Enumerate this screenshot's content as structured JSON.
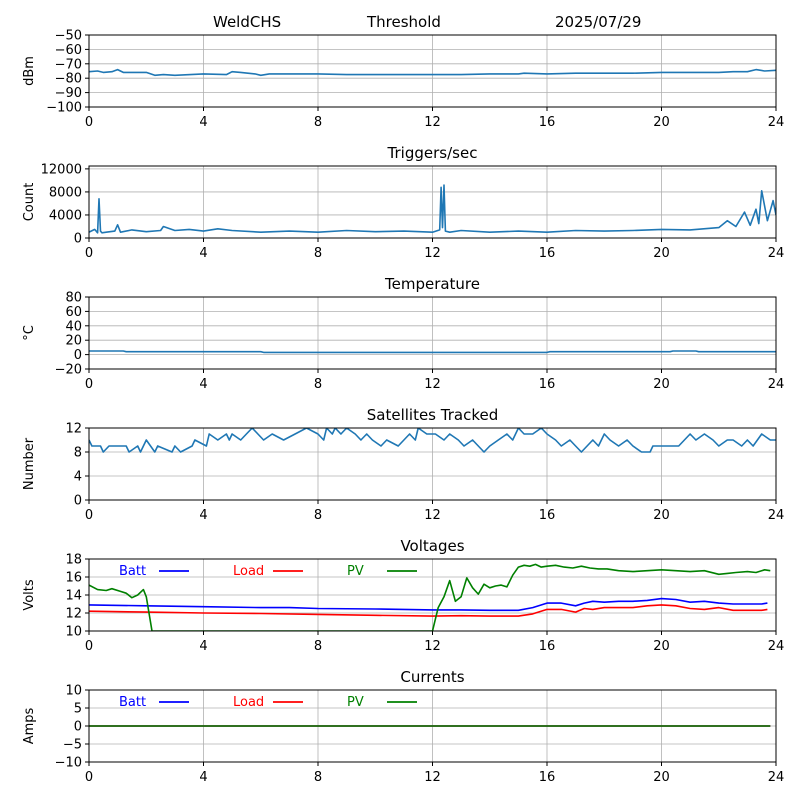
{
  "header": {
    "station": "WeldCHS",
    "mode": "Threshold",
    "date": "2025/07/29"
  },
  "chart_data": [
    {
      "id": "signal",
      "type": "line",
      "title": "",
      "xlabel": "",
      "ylabel": "dBm",
      "xlim": [
        0,
        24
      ],
      "ylim": [
        -100,
        -50
      ],
      "xticks": [
        0,
        4,
        8,
        12,
        16,
        20,
        24
      ],
      "yticks": [
        -100,
        -90,
        -80,
        -70,
        -60,
        -50
      ],
      "grid": true,
      "series": [
        {
          "color": "#1f77b4",
          "x": [
            0,
            0.3,
            0.5,
            0.8,
            1.0,
            1.2,
            2.0,
            2.3,
            2.6,
            3.0,
            4.0,
            4.8,
            5.0,
            5.3,
            5.8,
            6.0,
            6.3,
            7.0,
            8.0,
            9.0,
            10.0,
            11.0,
            12.0,
            13.0,
            14.0,
            15.0,
            15.2,
            16.0,
            17.0,
            18.0,
            19.0,
            20.0,
            21.0,
            22.0,
            22.5,
            23.0,
            23.3,
            23.6,
            24.0
          ],
          "y": [
            -75.5,
            -75,
            -76,
            -75.5,
            -74,
            -76,
            -76,
            -78,
            -77.5,
            -78,
            -77,
            -77.5,
            -75.5,
            -76,
            -77,
            -78,
            -77,
            -77,
            -77,
            -77.5,
            -77.5,
            -77.5,
            -77.5,
            -77.5,
            -77,
            -77,
            -76.5,
            -77,
            -76.5,
            -76.5,
            -76.5,
            -76,
            -76,
            -76,
            -75.5,
            -75.5,
            -74,
            -75,
            -74.5
          ]
        }
      ]
    },
    {
      "id": "triggers",
      "type": "line",
      "title": "Triggers/sec",
      "xlabel": "",
      "ylabel": "Count",
      "xlim": [
        0,
        24
      ],
      "ylim": [
        0,
        12500
      ],
      "xticks": [
        0,
        4,
        8,
        12,
        16,
        20,
        24
      ],
      "yticks": [
        0,
        4000,
        8000,
        12000
      ],
      "grid": true,
      "series": [
        {
          "color": "#1f77b4",
          "x": [
            0,
            0.2,
            0.3,
            0.35,
            0.4,
            0.45,
            0.6,
            0.9,
            1.0,
            1.1,
            1.5,
            2.0,
            2.5,
            2.6,
            3.0,
            3.5,
            4.0,
            4.5,
            5.0,
            6.0,
            7.0,
            8.0,
            9.0,
            10.0,
            11.0,
            12.0,
            12.25,
            12.3,
            12.35,
            12.4,
            12.45,
            12.6,
            13.0,
            14.0,
            15.0,
            16.0,
            17.0,
            18.0,
            19.0,
            20.0,
            21.0,
            22.0,
            22.3,
            22.6,
            22.9,
            23.1,
            23.3,
            23.4,
            23.5,
            23.7,
            23.9,
            24.0
          ],
          "y": [
            1000,
            1500,
            900,
            6800,
            1200,
            900,
            1000,
            1200,
            2300,
            1000,
            1400,
            1100,
            1300,
            2000,
            1300,
            1500,
            1200,
            1600,
            1300,
            1000,
            1200,
            1000,
            1300,
            1100,
            1200,
            1000,
            1400,
            8800,
            1800,
            9200,
            1200,
            1000,
            1300,
            1000,
            1200,
            1000,
            1300,
            1200,
            1300,
            1500,
            1400,
            1800,
            3000,
            2000,
            4500,
            2200,
            5000,
            2500,
            8200,
            3000,
            6500,
            4000
          ]
        }
      ]
    },
    {
      "id": "temperature",
      "type": "line",
      "title": "Temperature",
      "xlabel": "",
      "ylabel": "°C",
      "xlim": [
        0,
        24
      ],
      "ylim": [
        -20,
        80
      ],
      "xticks": [
        0,
        4,
        8,
        12,
        16,
        20,
        24
      ],
      "yticks": [
        -20,
        0,
        20,
        40,
        60,
        80
      ],
      "grid": true,
      "series": [
        {
          "color": "#1f77b4",
          "x": [
            0,
            1.2,
            1.3,
            6.0,
            6.1,
            16.0,
            16.1,
            20.3,
            20.4,
            21.2,
            21.3,
            24.0
          ],
          "y": [
            5,
            5,
            4,
            4,
            3,
            3,
            4,
            4,
            5,
            5,
            4,
            4
          ]
        }
      ]
    },
    {
      "id": "satellites",
      "type": "line",
      "title": "Satellites Tracked",
      "xlabel": "",
      "ylabel": "Number",
      "xlim": [
        0,
        24
      ],
      "ylim": [
        0,
        12
      ],
      "xticks": [
        0,
        4,
        8,
        12,
        16,
        20,
        24
      ],
      "yticks": [
        0,
        4,
        8,
        12
      ],
      "grid": true,
      "series": [
        {
          "color": "#1f77b4",
          "x": [
            0,
            0.1,
            0.4,
            0.5,
            0.7,
            1.3,
            1.4,
            1.7,
            1.8,
            2.0,
            2.3,
            2.4,
            2.9,
            3.0,
            3.2,
            3.6,
            3.7,
            4.1,
            4.2,
            4.5,
            4.8,
            4.9,
            5.0,
            5.3,
            5.5,
            5.7,
            5.9,
            6.1,
            6.4,
            6.8,
            7.2,
            7.6,
            8.0,
            8.2,
            8.3,
            8.5,
            8.6,
            8.8,
            9.0,
            9.3,
            9.5,
            9.7,
            9.9,
            10.2,
            10.4,
            10.8,
            11.0,
            11.2,
            11.4,
            11.5,
            11.8,
            12.1,
            12.4,
            12.6,
            12.9,
            13.1,
            13.4,
            13.6,
            13.8,
            14.0,
            14.3,
            14.6,
            14.8,
            15.0,
            15.2,
            15.5,
            15.8,
            16.0,
            16.3,
            16.5,
            16.8,
            17.0,
            17.2,
            17.4,
            17.6,
            17.8,
            18.0,
            18.2,
            18.5,
            18.8,
            19.0,
            19.3,
            19.6,
            19.7,
            20.0,
            20.3,
            20.6,
            20.8,
            21.0,
            21.2,
            21.5,
            21.8,
            22.0,
            22.3,
            22.5,
            22.8,
            23.0,
            23.2,
            23.5,
            23.8,
            24.0
          ],
          "y": [
            10,
            9,
            9,
            8,
            9,
            9,
            8,
            9,
            8,
            10,
            8,
            9,
            8,
            9,
            8,
            9,
            10,
            9,
            11,
            10,
            11,
            10,
            11,
            10,
            11,
            12,
            11,
            10,
            11,
            10,
            11,
            12,
            11,
            10,
            12,
            11,
            12,
            11,
            12,
            11,
            10,
            11,
            10,
            9,
            10,
            9,
            10,
            11,
            10,
            12,
            11,
            11,
            10,
            11,
            10,
            9,
            10,
            9,
            8,
            9,
            10,
            11,
            10,
            12,
            11,
            11,
            12,
            11,
            10,
            9,
            10,
            9,
            8,
            9,
            10,
            9,
            11,
            10,
            9,
            10,
            9,
            8,
            8,
            9,
            9,
            9,
            9,
            10,
            11,
            10,
            11,
            10,
            9,
            10,
            10,
            9,
            10,
            9,
            11,
            10,
            10
          ]
        }
      ]
    },
    {
      "id": "voltages",
      "type": "line",
      "title": "Voltages",
      "xlabel": "",
      "ylabel": "Volts",
      "xlim": [
        0,
        24
      ],
      "ylim": [
        10,
        18
      ],
      "xticks": [
        0,
        4,
        8,
        12,
        16,
        20,
        24
      ],
      "yticks": [
        10,
        12,
        14,
        16,
        18
      ],
      "grid": true,
      "legend_position": "top-left, inline",
      "series": [
        {
          "name": "Batt",
          "color": "#0000ff",
          "x": [
            0,
            2,
            4,
            6,
            7,
            8,
            10,
            12,
            13,
            14,
            15,
            15.5,
            16,
            16.5,
            17,
            17.3,
            17.6,
            18,
            18.5,
            19,
            19.5,
            20,
            20.5,
            21,
            21.5,
            22,
            22.5,
            23,
            23.5,
            23.7
          ],
          "y": [
            12.9,
            12.8,
            12.7,
            12.6,
            12.6,
            12.5,
            12.45,
            12.35,
            12.35,
            12.3,
            12.3,
            12.6,
            13.1,
            13.1,
            12.8,
            13.1,
            13.3,
            13.2,
            13.3,
            13.3,
            13.4,
            13.6,
            13.5,
            13.2,
            13.3,
            13.1,
            13.0,
            13.0,
            13.0,
            13.1
          ]
        },
        {
          "name": "Load",
          "color": "#ff0000",
          "x": [
            0,
            2,
            4,
            6,
            8,
            10,
            12,
            13,
            14,
            15,
            15.5,
            16,
            16.5,
            17,
            17.3,
            17.6,
            18,
            18.5,
            19,
            19.5,
            20,
            20.5,
            21,
            21.5,
            22,
            22.5,
            23,
            23.5,
            23.7
          ],
          "y": [
            12.2,
            12.1,
            12.0,
            11.95,
            11.85,
            11.75,
            11.65,
            11.7,
            11.65,
            11.65,
            11.9,
            12.4,
            12.4,
            12.1,
            12.5,
            12.4,
            12.6,
            12.6,
            12.6,
            12.8,
            12.9,
            12.8,
            12.5,
            12.4,
            12.6,
            12.3,
            12.3,
            12.3,
            12.4
          ]
        },
        {
          "name": "PV",
          "color": "#008000",
          "x": [
            0,
            0.3,
            0.6,
            0.8,
            1.1,
            1.3,
            1.5,
            1.7,
            1.9,
            2.0,
            2.2,
            12.0,
            12.2,
            12.4,
            12.6,
            12.8,
            13.0,
            13.2,
            13.4,
            13.6,
            13.8,
            14.0,
            14.2,
            14.4,
            14.6,
            14.8,
            15.0,
            15.2,
            15.4,
            15.6,
            15.8,
            16.0,
            16.3,
            16.6,
            16.9,
            17.2,
            17.5,
            17.8,
            18.1,
            18.5,
            19.0,
            19.5,
            20.0,
            20.5,
            21.0,
            21.5,
            22.0,
            22.3,
            22.6,
            23.0,
            23.3,
            23.6,
            23.8
          ],
          "y": [
            15.1,
            14.6,
            14.5,
            14.7,
            14.4,
            14.2,
            13.7,
            14.0,
            14.6,
            13.8,
            10.0,
            10.0,
            12.6,
            13.8,
            15.6,
            13.3,
            13.8,
            15.9,
            14.8,
            14.1,
            15.2,
            14.8,
            15.0,
            15.1,
            14.9,
            16.2,
            17.1,
            17.3,
            17.2,
            17.4,
            17.1,
            17.2,
            17.3,
            17.1,
            17.0,
            17.2,
            17.0,
            16.9,
            16.9,
            16.7,
            16.6,
            16.7,
            16.8,
            16.7,
            16.6,
            16.7,
            16.3,
            16.4,
            16.5,
            16.6,
            16.5,
            16.8,
            16.7
          ]
        }
      ]
    },
    {
      "id": "currents",
      "type": "line",
      "title": "Currents",
      "xlabel": "",
      "ylabel": "Amps",
      "xlim": [
        0,
        24
      ],
      "ylim": [
        -10,
        10
      ],
      "xticks": [
        0,
        4,
        8,
        12,
        16,
        20,
        24
      ],
      "yticks": [
        -10,
        -5,
        0,
        5,
        10
      ],
      "grid": true,
      "legend_position": "top-left, inline",
      "series": [
        {
          "name": "Batt",
          "color": "#0000ff",
          "x": [
            0,
            23.8
          ],
          "y": [
            0,
            0
          ]
        },
        {
          "name": "Load",
          "color": "#ff0000",
          "x": [
            0,
            23.8
          ],
          "y": [
            0,
            0
          ]
        },
        {
          "name": "PV",
          "color": "#008000",
          "x": [
            0,
            23.8
          ],
          "y": [
            0,
            0
          ]
        }
      ]
    }
  ]
}
